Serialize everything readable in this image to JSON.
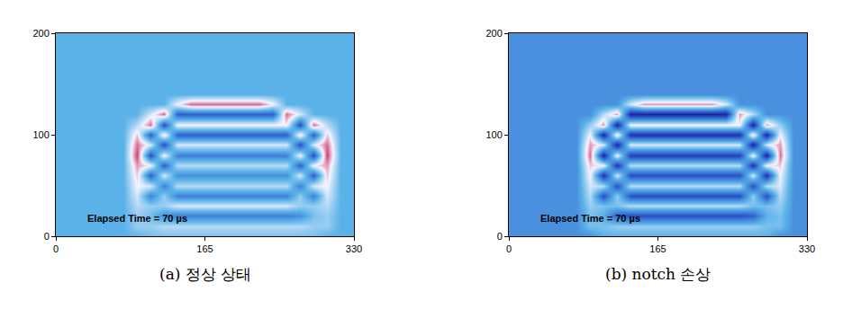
{
  "chart_data": [
    {
      "type": "heatmap",
      "title": "(a) 정상 상태",
      "annotations": [
        "Elapsed Time = 70 µs"
      ],
      "xlim": [
        0,
        330
      ],
      "ylim": [
        0,
        200
      ],
      "xticks": [
        0,
        165,
        330
      ],
      "yticks": [
        0,
        100,
        200
      ],
      "zlim": [
        -1,
        1
      ],
      "x": [
        0,
        15,
        30,
        45,
        60,
        75,
        90,
        105,
        120,
        135,
        150,
        165,
        180,
        195,
        210,
        225,
        240,
        255,
        270,
        285,
        300,
        315,
        330
      ],
      "y": [
        0,
        10,
        20,
        30,
        40,
        50,
        60,
        70,
        80,
        90,
        100,
        110,
        120,
        130,
        140,
        150,
        160,
        170,
        180,
        190,
        200
      ],
      "z": [
        [
          0,
          0,
          0,
          0,
          0,
          0,
          0,
          0.1,
          0.1,
          0.1,
          0.1,
          0.1,
          0.1,
          0.1,
          0.1,
          0.1,
          0.1,
          0.1,
          0.1,
          0.1,
          0,
          0,
          0
        ],
        [
          0,
          0,
          0,
          0,
          0,
          0,
          0.2,
          0.2,
          0.3,
          0.3,
          0.3,
          0.3,
          0.3,
          0.3,
          0.3,
          0.3,
          0.3,
          0.3,
          0.3,
          0.2,
          0.2,
          0,
          0
        ],
        [
          0,
          0,
          0,
          0,
          0,
          0,
          0.2,
          0.1,
          -0.2,
          -0.3,
          -0.3,
          -0.3,
          -0.3,
          -0.3,
          -0.3,
          -0.3,
          -0.3,
          -0.3,
          -0.2,
          0.1,
          0.2,
          0,
          0
        ],
        [
          0,
          0,
          0,
          0,
          0,
          0,
          0.3,
          0.2,
          0.2,
          0.4,
          0.4,
          0.4,
          0.4,
          0.4,
          0.4,
          0.4,
          0.4,
          0.4,
          0.2,
          0.2,
          0.3,
          0,
          0
        ],
        [
          0,
          0,
          0,
          0,
          0,
          0,
          0.4,
          -0.3,
          0.2,
          -0.3,
          -0.3,
          -0.3,
          -0.3,
          -0.3,
          -0.3,
          -0.3,
          -0.3,
          -0.3,
          0.2,
          -0.3,
          0.4,
          0,
          0
        ],
        [
          0,
          0,
          0,
          0,
          0,
          0,
          0.5,
          0.4,
          -0.3,
          0.3,
          0.3,
          0.3,
          0.3,
          0.3,
          0.3,
          0.3,
          0.3,
          0.3,
          -0.3,
          0.4,
          0.5,
          0,
          0
        ],
        [
          0,
          0,
          0,
          0,
          0,
          0,
          0.6,
          -0.5,
          0.4,
          -0.2,
          -0.2,
          -0.2,
          -0.2,
          -0.2,
          -0.2,
          -0.2,
          -0.2,
          -0.2,
          0.4,
          -0.5,
          0.6,
          0,
          0
        ],
        [
          0,
          0,
          0,
          0,
          0,
          0,
          0.7,
          0.5,
          -0.5,
          0.3,
          0.3,
          0.3,
          0.3,
          0.3,
          0.3,
          0.3,
          0.3,
          0.3,
          -0.5,
          0.5,
          0.7,
          0,
          0
        ],
        [
          0,
          0,
          0,
          0,
          0,
          0,
          0.9,
          -0.6,
          0.5,
          -0.3,
          -0.3,
          -0.3,
          -0.3,
          -0.3,
          -0.3,
          -0.3,
          -0.3,
          -0.3,
          0.5,
          -0.6,
          0.9,
          0,
          0
        ],
        [
          0,
          0,
          0,
          0,
          0,
          0,
          0.8,
          0.4,
          -0.6,
          0.4,
          0.4,
          0.4,
          0.4,
          0.4,
          0.4,
          0.4,
          0.4,
          0.4,
          -0.6,
          0.4,
          0.8,
          0,
          0
        ],
        [
          0,
          0,
          0,
          0,
          0,
          0,
          0.6,
          -0.5,
          0.6,
          -0.5,
          -0.5,
          -0.5,
          -0.5,
          -0.5,
          -0.5,
          -0.5,
          -0.5,
          -0.5,
          0.6,
          -0.5,
          0.6,
          0,
          0
        ],
        [
          0,
          0,
          0,
          0,
          0,
          0,
          0.3,
          0.8,
          -0.6,
          0.5,
          0.5,
          0.5,
          0.5,
          0.5,
          0.5,
          0.5,
          0.5,
          0.5,
          -0.6,
          0.8,
          0.3,
          0,
          0
        ],
        [
          0,
          0,
          0,
          0,
          0,
          0,
          0,
          0.4,
          0.8,
          -0.5,
          -0.5,
          -0.5,
          -0.5,
          -0.5,
          -0.5,
          -0.5,
          -0.5,
          0.8,
          0.4,
          0,
          0,
          0,
          0
        ],
        [
          0,
          0,
          0,
          0,
          0,
          0,
          0,
          0,
          0,
          0.5,
          0.8,
          0.8,
          0.8,
          0.8,
          0.8,
          0.8,
          0.5,
          0,
          0,
          0,
          0,
          0,
          0
        ],
        [
          0,
          0,
          0,
          0,
          0,
          0,
          0,
          0,
          0,
          0,
          0,
          0,
          0,
          0,
          0,
          0,
          0,
          0,
          0,
          0,
          0,
          0,
          0
        ],
        [
          0,
          0,
          0,
          0,
          0,
          0,
          0,
          0,
          0,
          0,
          0,
          0,
          0,
          0,
          0,
          0,
          0,
          0,
          0,
          0,
          0,
          0,
          0
        ],
        [
          0,
          0,
          0,
          0,
          0,
          0,
          0,
          0,
          0,
          0,
          0,
          0,
          0,
          0,
          0,
          0,
          0,
          0,
          0,
          0,
          0,
          0,
          0
        ],
        [
          0,
          0,
          0,
          0,
          0,
          0,
          0,
          0,
          0,
          0,
          0,
          0,
          0,
          0,
          0,
          0,
          0,
          0,
          0,
          0,
          0,
          0,
          0
        ],
        [
          0,
          0,
          0,
          0,
          0,
          0,
          0,
          0,
          0,
          0,
          0,
          0,
          0,
          0,
          0,
          0,
          0,
          0,
          0,
          0,
          0,
          0,
          0
        ],
        [
          0,
          0,
          0,
          0,
          0,
          0,
          0,
          0,
          0,
          0,
          0,
          0,
          0,
          0,
          0,
          0,
          0,
          0,
          0,
          0,
          0,
          0,
          0
        ],
        [
          0,
          0,
          0,
          0,
          0,
          0,
          0,
          0,
          0,
          0,
          0,
          0,
          0,
          0,
          0,
          0,
          0,
          0,
          0,
          0,
          0,
          0,
          0
        ]
      ]
    },
    {
      "type": "heatmap",
      "title": "(b) notch 손상",
      "annotations": [
        "Elapsed Time = 70 µs"
      ],
      "xlim": [
        0,
        330
      ],
      "ylim": [
        0,
        200
      ],
      "xticks": [
        0,
        165,
        330
      ],
      "yticks": [
        0,
        100,
        200
      ],
      "zlim": [
        -0.8,
        1.2
      ],
      "x": [
        0,
        15,
        30,
        45,
        60,
        75,
        90,
        105,
        120,
        135,
        150,
        165,
        180,
        195,
        210,
        225,
        240,
        255,
        270,
        285,
        300,
        315,
        330
      ],
      "y": [
        0,
        10,
        20,
        30,
        40,
        50,
        60,
        70,
        80,
        90,
        100,
        110,
        120,
        130,
        140,
        150,
        160,
        170,
        180,
        190,
        200
      ],
      "z": [
        [
          0,
          0,
          0,
          0,
          0,
          0,
          0,
          0.2,
          0.2,
          0.2,
          0.2,
          0.2,
          0.2,
          0.2,
          0.2,
          0.2,
          0.2,
          0.2,
          0.2,
          0.2,
          0,
          0,
          0
        ],
        [
          0,
          0,
          0,
          0,
          0,
          0,
          0.3,
          0.3,
          0.4,
          0.4,
          0.4,
          0.4,
          0.4,
          0.4,
          0.4,
          0.4,
          0.4,
          0.4,
          0.4,
          0.3,
          0.3,
          0,
          0
        ],
        [
          0,
          0,
          0,
          0,
          0,
          0,
          0.3,
          0.2,
          -0.3,
          -0.4,
          -0.4,
          -0.4,
          -0.4,
          -0.4,
          -0.4,
          -0.4,
          -0.4,
          -0.4,
          -0.3,
          0.2,
          0.3,
          0,
          0
        ],
        [
          0,
          0,
          0,
          0,
          0,
          0,
          0.4,
          0.3,
          0.3,
          0.5,
          0.5,
          0.5,
          0.5,
          0.5,
          0.5,
          0.5,
          0.5,
          0.5,
          0.3,
          0.3,
          0.4,
          0,
          0
        ],
        [
          0,
          0,
          0,
          0,
          0,
          0,
          0.5,
          -0.4,
          0.4,
          -0.4,
          -0.4,
          -0.4,
          -0.4,
          -0.4,
          -0.4,
          -0.4,
          -0.4,
          -0.4,
          0.4,
          -0.4,
          0.5,
          0,
          0
        ],
        [
          0,
          0,
          0,
          0,
          0,
          0,
          0.6,
          0.5,
          -0.4,
          0.5,
          0.5,
          0.5,
          0.5,
          0.5,
          0.5,
          0.5,
          0.5,
          0.5,
          -0.4,
          0.5,
          0.6,
          0,
          0
        ],
        [
          0,
          0,
          0,
          0,
          0,
          0,
          0.7,
          -0.6,
          0.6,
          -0.4,
          -0.4,
          -0.4,
          -0.4,
          -0.4,
          -0.4,
          -0.4,
          -0.4,
          -0.4,
          0.6,
          -0.6,
          0.7,
          0,
          0
        ],
        [
          0,
          0,
          0,
          0,
          0,
          0,
          0.8,
          0.7,
          -0.6,
          0.5,
          0.5,
          0.5,
          0.5,
          0.5,
          0.5,
          0.5,
          0.5,
          0.5,
          -0.6,
          0.7,
          0.8,
          0,
          0
        ],
        [
          0,
          0,
          0,
          0,
          0,
          0,
          1.0,
          -0.7,
          0.7,
          -0.5,
          -0.5,
          -0.5,
          -0.5,
          -0.5,
          -0.5,
          -0.5,
          -0.5,
          -0.5,
          0.7,
          -0.7,
          1.0,
          0,
          0
        ],
        [
          0,
          0,
          0,
          0,
          0,
          0,
          0.9,
          0.6,
          -0.7,
          0.6,
          0.6,
          0.6,
          0.6,
          0.6,
          0.6,
          0.6,
          0.6,
          0.6,
          -0.7,
          0.6,
          0.9,
          0,
          0
        ],
        [
          0,
          0,
          0,
          0,
          0,
          0,
          0.7,
          -0.7,
          0.8,
          -0.6,
          -0.6,
          -0.6,
          -0.6,
          -0.6,
          -0.6,
          -0.6,
          -0.6,
          -0.6,
          0.8,
          -0.7,
          0.7,
          0,
          0
        ],
        [
          0,
          0,
          0,
          0,
          0,
          0,
          0.4,
          0.9,
          -0.7,
          0.7,
          0.7,
          0.7,
          0.7,
          0.7,
          0.7,
          0.7,
          0.7,
          0.7,
          -0.7,
          0.9,
          0.4,
          0,
          0
        ],
        [
          0,
          0,
          0,
          0,
          0,
          0,
          0,
          0.5,
          0.9,
          -0.7,
          -0.7,
          -0.7,
          -0.7,
          -0.7,
          -0.7,
          -0.7,
          -0.7,
          0.9,
          0.5,
          0,
          0,
          0,
          0
        ],
        [
          0,
          0,
          0,
          0,
          0,
          0,
          0,
          0,
          0,
          0.6,
          0.9,
          0.9,
          0.9,
          0.9,
          0.9,
          0.9,
          0.6,
          0,
          0,
          0,
          0,
          0,
          0
        ],
        [
          0,
          0,
          0,
          0,
          0,
          0,
          0,
          0,
          0,
          0,
          0,
          0,
          0,
          0,
          0,
          0,
          0,
          0,
          0,
          0,
          0,
          0,
          0
        ],
        [
          0,
          0,
          0,
          0,
          0,
          0,
          0,
          0,
          0,
          0,
          0,
          0,
          0,
          0,
          0,
          0,
          0,
          0,
          0,
          0,
          0,
          0,
          0
        ],
        [
          0,
          0,
          0,
          0,
          0,
          0,
          0,
          0,
          0,
          0,
          0,
          0,
          0,
          0,
          0,
          0,
          0,
          0,
          0,
          0,
          0,
          0,
          0
        ],
        [
          0,
          0,
          0,
          0,
          0,
          0,
          0,
          0,
          0,
          0,
          0,
          0,
          0,
          0,
          0,
          0,
          0,
          0,
          0,
          0,
          0,
          0,
          0
        ],
        [
          0,
          0,
          0,
          0,
          0,
          0,
          0,
          0,
          0,
          0,
          0,
          0,
          0,
          0,
          0,
          0,
          0,
          0,
          0,
          0,
          0,
          0,
          0
        ],
        [
          0,
          0,
          0,
          0,
          0,
          0,
          0,
          0,
          0,
          0,
          0,
          0,
          0,
          0,
          0,
          0,
          0,
          0,
          0,
          0,
          0,
          0,
          0
        ],
        [
          0,
          0,
          0,
          0,
          0,
          0,
          0,
          0,
          0,
          0,
          0,
          0,
          0,
          0,
          0,
          0,
          0,
          0,
          0,
          0,
          0,
          0,
          0
        ]
      ]
    }
  ]
}
